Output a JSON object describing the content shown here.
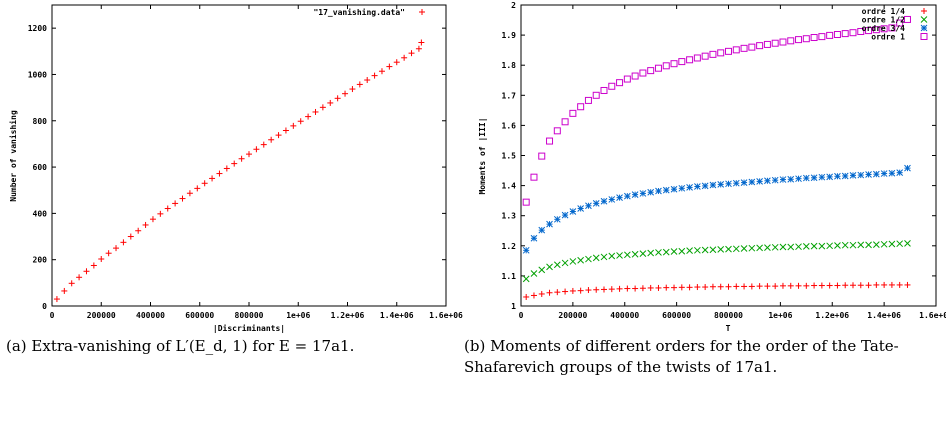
{
  "captions": {
    "a": "(a) Extra-vanishing of L′(E_d, 1) for E = 17a1.",
    "b": "(b) Moments of different orders for the order of the Tate-Shafarevich groups of the twists of 17a1."
  },
  "chart_data": [
    {
      "type": "scatter",
      "xlabel": "|Discriminants|",
      "ylabel": "Number of vanishing",
      "xlim": [
        0,
        1600000
      ],
      "ylim": [
        0,
        1300
      ],
      "xticks": [
        "0",
        "200000",
        "400000",
        "600000",
        "800000",
        "1e+06",
        "1.2e+06",
        "1.4e+06",
        "1.6e+06"
      ],
      "yticks": [
        "0",
        "200",
        "400",
        "600",
        "800",
        "1000",
        "1200"
      ],
      "grid": false,
      "legend": "top-right",
      "series": [
        {
          "name": "\"17_vanishing.data\"",
          "marker": "+",
          "color": "#ff0000",
          "x": [
            20000,
            50000,
            80000,
            110000,
            140000,
            170000,
            200000,
            230000,
            260000,
            290000,
            320000,
            350000,
            380000,
            410000,
            440000,
            470000,
            500000,
            530000,
            560000,
            590000,
            620000,
            650000,
            680000,
            710000,
            740000,
            770000,
            800000,
            830000,
            860000,
            890000,
            920000,
            950000,
            980000,
            1010000,
            1040000,
            1070000,
            1100000,
            1130000,
            1160000,
            1190000,
            1220000,
            1250000,
            1280000,
            1310000,
            1340000,
            1370000,
            1400000,
            1430000,
            1460000,
            1490000,
            1500000
          ],
          "y": [
            30,
            65,
            98,
            124,
            150,
            175,
            203,
            228,
            250,
            275,
            300,
            325,
            350,
            375,
            398,
            421,
            443,
            464,
            487,
            508,
            530,
            551,
            572,
            594,
            615,
            636,
            656,
            677,
            697,
            718,
            738,
            758,
            778,
            798,
            818,
            838,
            858,
            877,
            897,
            917,
            937,
            957,
            976,
            995,
            1014,
            1034,
            1053,
            1072,
            1092,
            1111,
            1138
          ]
        }
      ]
    },
    {
      "type": "scatter",
      "xlabel": "T",
      "ylabel": "Moments of |III|",
      "xlim": [
        0,
        1600000
      ],
      "ylim": [
        1,
        2
      ],
      "xticks": [
        "0",
        "200000",
        "400000",
        "600000",
        "800000",
        "1e+06",
        "1.2e+06",
        "1.4e+06",
        "1.6e+06"
      ],
      "yticks": [
        "1",
        "1.1",
        "1.2",
        "1.3",
        "1.4",
        "1.5",
        "1.6",
        "1.7",
        "1.8",
        "1.9",
        "2"
      ],
      "grid": false,
      "legend": "top-right",
      "x": [
        20000,
        50000,
        80000,
        110000,
        140000,
        170000,
        200000,
        230000,
        260000,
        290000,
        320000,
        350000,
        380000,
        410000,
        440000,
        470000,
        500000,
        530000,
        560000,
        590000,
        620000,
        650000,
        680000,
        710000,
        740000,
        770000,
        800000,
        830000,
        860000,
        890000,
        920000,
        950000,
        980000,
        1010000,
        1040000,
        1070000,
        1100000,
        1130000,
        1160000,
        1190000,
        1220000,
        1250000,
        1280000,
        1310000,
        1340000,
        1370000,
        1400000,
        1430000,
        1460000,
        1490000
      ],
      "series": [
        {
          "name": "ordre 1/4",
          "marker": "+",
          "color": "#ff0000",
          "values": [
            1.03,
            1.035,
            1.04,
            1.044,
            1.046,
            1.048,
            1.05,
            1.051,
            1.053,
            1.054,
            1.055,
            1.056,
            1.057,
            1.058,
            1.058,
            1.059,
            1.06,
            1.06,
            1.061,
            1.061,
            1.062,
            1.062,
            1.063,
            1.063,
            1.064,
            1.064,
            1.064,
            1.065,
            1.065,
            1.065,
            1.066,
            1.066,
            1.066,
            1.067,
            1.067,
            1.067,
            1.067,
            1.068,
            1.068,
            1.068,
            1.068,
            1.069,
            1.069,
            1.069,
            1.069,
            1.07,
            1.07,
            1.07,
            1.07,
            1.07
          ]
        },
        {
          "name": "ordre 1/2",
          "marker": "x",
          "color": "#00a000",
          "values": [
            1.09,
            1.108,
            1.12,
            1.13,
            1.137,
            1.143,
            1.148,
            1.152,
            1.156,
            1.16,
            1.163,
            1.166,
            1.168,
            1.17,
            1.172,
            1.174,
            1.176,
            1.178,
            1.179,
            1.181,
            1.182,
            1.184,
            1.185,
            1.186,
            1.187,
            1.188,
            1.189,
            1.19,
            1.191,
            1.192,
            1.193,
            1.194,
            1.195,
            1.196,
            1.196,
            1.197,
            1.198,
            1.199,
            1.199,
            1.2,
            1.201,
            1.202,
            1.202,
            1.203,
            1.203,
            1.204,
            1.205,
            1.206,
            1.207,
            1.208
          ]
        },
        {
          "name": "ordre 3/4",
          "marker": "*",
          "color": "#0066cc",
          "values": [
            1.185,
            1.225,
            1.252,
            1.272,
            1.288,
            1.302,
            1.314,
            1.324,
            1.333,
            1.341,
            1.348,
            1.354,
            1.36,
            1.365,
            1.37,
            1.374,
            1.378,
            1.382,
            1.385,
            1.388,
            1.391,
            1.394,
            1.397,
            1.399,
            1.402,
            1.404,
            1.406,
            1.408,
            1.41,
            1.412,
            1.414,
            1.416,
            1.418,
            1.42,
            1.421,
            1.423,
            1.425,
            1.426,
            1.428,
            1.429,
            1.431,
            1.432,
            1.434,
            1.435,
            1.437,
            1.438,
            1.44,
            1.441,
            1.443,
            1.458
          ]
        },
        {
          "name": "ordre 1",
          "marker": "square",
          "color": "#cc00cc",
          "values": [
            1.345,
            1.428,
            1.498,
            1.548,
            1.582,
            1.612,
            1.64,
            1.662,
            1.683,
            1.7,
            1.716,
            1.73,
            1.742,
            1.754,
            1.764,
            1.774,
            1.782,
            1.79,
            1.798,
            1.805,
            1.812,
            1.818,
            1.824,
            1.83,
            1.836,
            1.841,
            1.846,
            1.851,
            1.856,
            1.86,
            1.865,
            1.869,
            1.873,
            1.877,
            1.881,
            1.885,
            1.888,
            1.892,
            1.895,
            1.899,
            1.902,
            1.905,
            1.908,
            1.912,
            1.915,
            1.918,
            1.921,
            1.924,
            1.94,
            1.952
          ]
        }
      ]
    }
  ]
}
